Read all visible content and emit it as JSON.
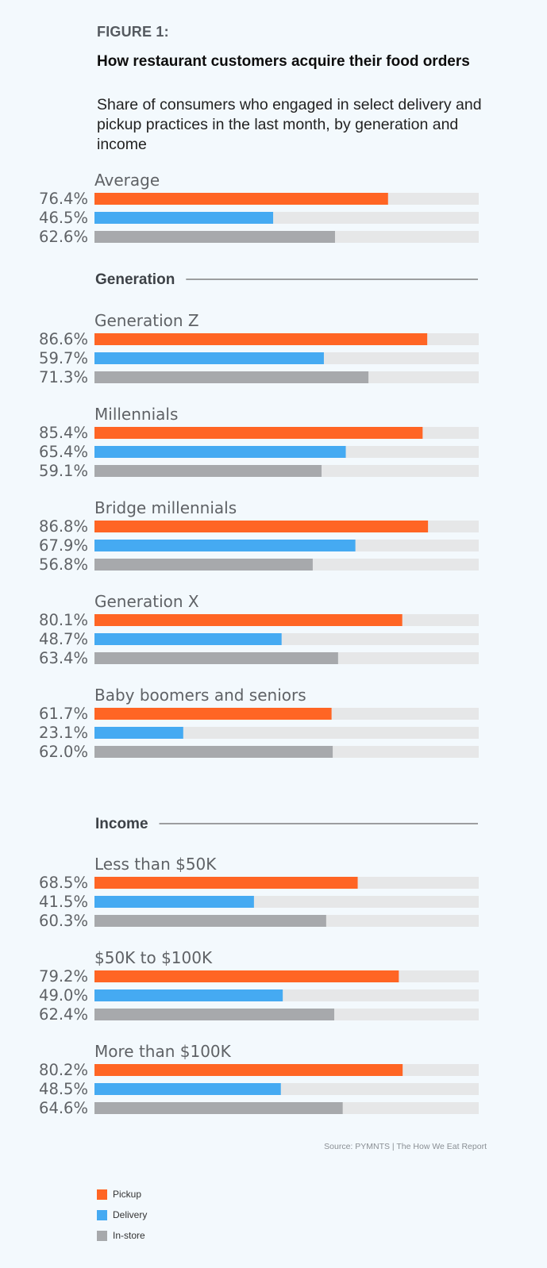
{
  "header": {
    "figure_label": "FIGURE 1:",
    "title": "How restaurant customers acquire their food orders",
    "subtitle": "Share of consumers who engaged in select delivery and pickup practices in the last month, by generation and income"
  },
  "source": "Source: PYMNTS | The How We Eat Report",
  "colors": {
    "pickup": "#ff6524",
    "delivery": "#45aaf2",
    "instore": "#a7a9ac",
    "track": "#e6e7e8",
    "group_label": "#5f6266",
    "value_label": "#5f6266",
    "section_title": "#3d4247",
    "rule": "#444444"
  },
  "legend": [
    {
      "label": "Pickup",
      "color": "#ff6524"
    },
    {
      "label": "Delivery",
      "color": "#45aaf2"
    },
    {
      "label": "In-store",
      "color": "#a7a9ac"
    }
  ],
  "chart_data": {
    "type": "bar",
    "orientation": "horizontal",
    "title": "How restaurant customers acquire their food orders",
    "subtitle": "Share of consumers who engaged in select delivery and pickup practices in the last month, by generation and income",
    "xlim": [
      0,
      100
    ],
    "unit": "%",
    "series_names": [
      "Pickup",
      "Delivery",
      "In-store"
    ],
    "sections": [
      {
        "title": "",
        "groups": [
          {
            "name": "Average",
            "values": [
              76.4,
              46.5,
              62.6
            ],
            "labels": [
              "76.4%",
              "46.5%",
              "62.6%"
            ]
          }
        ]
      },
      {
        "title": "Generation",
        "groups": [
          {
            "name": "Generation Z",
            "values": [
              86.6,
              59.7,
              71.3
            ],
            "labels": [
              "86.6%",
              "59.7%",
              "71.3%"
            ]
          },
          {
            "name": "Millennials",
            "values": [
              85.4,
              65.4,
              59.1
            ],
            "labels": [
              "85.4%",
              "65.4%",
              "59.1%"
            ]
          },
          {
            "name": "Bridge millennials",
            "values": [
              86.8,
              67.9,
              56.8
            ],
            "labels": [
              "86.8%",
              "67.9%",
              "56.8%"
            ]
          },
          {
            "name": "Generation X",
            "values": [
              80.1,
              48.7,
              63.4
            ],
            "labels": [
              "80.1%",
              "48.7%",
              "63.4%"
            ]
          },
          {
            "name": "Baby boomers and seniors",
            "values": [
              61.7,
              23.1,
              62.0
            ],
            "labels": [
              "61.7%",
              "23.1%",
              "62.0%"
            ]
          }
        ]
      },
      {
        "title": "Income",
        "groups": [
          {
            "name": "Less than $50K",
            "values": [
              68.5,
              41.5,
              60.3
            ],
            "labels": [
              "68.5%",
              "41.5%",
              "60.3%"
            ]
          },
          {
            "name": "$50K to $100K",
            "values": [
              79.2,
              49.0,
              62.4
            ],
            "labels": [
              "79.2%",
              "49.0%",
              "62.4%"
            ]
          },
          {
            "name": "More than $100K",
            "values": [
              80.2,
              48.5,
              64.6
            ],
            "labels": [
              "80.2%",
              "48.5%",
              "64.6%"
            ]
          }
        ]
      }
    ]
  }
}
